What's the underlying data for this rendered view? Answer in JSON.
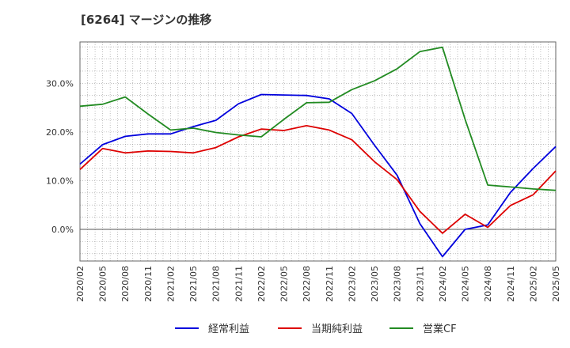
{
  "chart_data": {
    "type": "line",
    "title": "[6264]  マージンの推移",
    "x_ticks": [
      "2020/02",
      "2020/05",
      "2020/08",
      "2020/11",
      "2021/02",
      "2021/05",
      "2021/08",
      "2021/11",
      "2022/02",
      "2022/05",
      "2022/08",
      "2022/11",
      "2023/02",
      "2023/05",
      "2023/08",
      "2023/11",
      "2024/02",
      "2024/05",
      "2024/08",
      "2024/11",
      "2025/02",
      "2025/05"
    ],
    "y_ticks": [
      "0.0%",
      "10.0%",
      "20.0%",
      "30.0%"
    ],
    "y_tick_values": [
      0,
      10,
      20,
      30
    ],
    "ylim": [
      -6.5,
      38.5
    ],
    "grid": true,
    "legend_position": "bottom",
    "series": [
      {
        "name": "経常利益",
        "color": "#0000dd",
        "values": [
          13.4,
          17.4,
          19.1,
          19.6,
          19.6,
          21.1,
          22.4,
          25.8,
          27.7,
          27.6,
          27.5,
          26.8,
          23.8,
          17.3,
          11.1,
          1.2,
          -5.6,
          0.0,
          0.9,
          7.6,
          12.5,
          17.0
        ]
      },
      {
        "name": "当期純利益",
        "color": "#dd0000",
        "values": [
          12.3,
          16.6,
          15.7,
          16.1,
          16.0,
          15.7,
          16.8,
          19.0,
          20.6,
          20.3,
          21.3,
          20.4,
          18.4,
          13.9,
          10.2,
          3.7,
          -0.8,
          3.1,
          0.4,
          4.9,
          7.1,
          12.0
        ]
      },
      {
        "name": "営業CF",
        "color": "#228B22",
        "values": [
          25.3,
          25.7,
          27.2,
          23.7,
          20.4,
          20.8,
          19.9,
          19.4,
          19.0,
          22.6,
          26.0,
          26.1,
          28.7,
          30.5,
          33.0,
          36.5,
          37.4,
          22.6,
          9.1,
          8.7,
          8.3,
          8.0
        ]
      }
    ]
  }
}
